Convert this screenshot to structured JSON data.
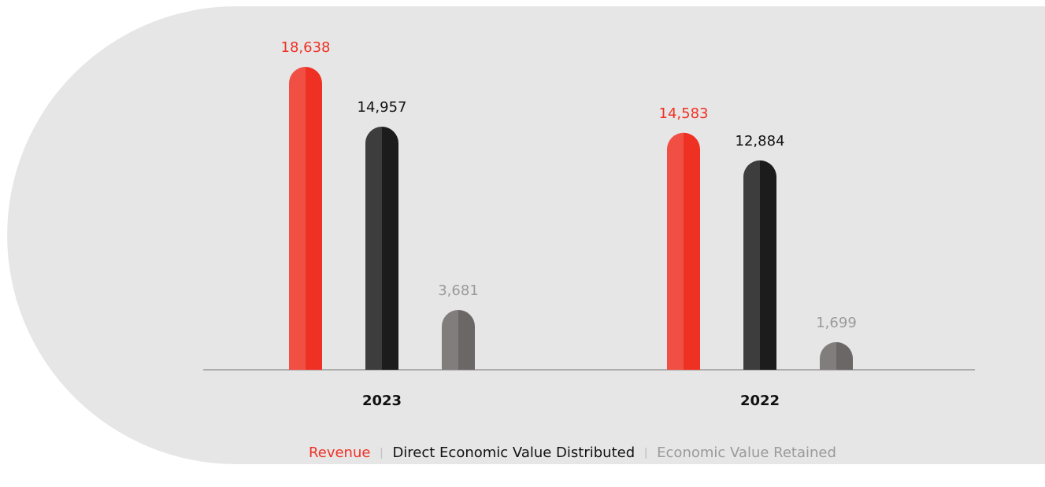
{
  "chart_data": {
    "type": "bar",
    "categories": [
      "2023",
      "2022"
    ],
    "series": [
      {
        "name": "Revenue",
        "color": "#ef3124",
        "values": [
          18638,
          14583
        ],
        "value_labels": [
          "18,638",
          "14,583"
        ]
      },
      {
        "name": "Direct Economic Value Distributed",
        "color": "#1c1c1c",
        "values": [
          14957,
          12884
        ],
        "value_labels": [
          "14,957",
          "12,884"
        ]
      },
      {
        "name": "Economic Value Retained",
        "color": "#6b6766",
        "values": [
          3681,
          1699
        ],
        "value_labels": [
          "3,681",
          "1,699"
        ]
      }
    ],
    "label_colors": [
      "#ef3124",
      "#111111",
      "#9a9a9a"
    ]
  }
}
